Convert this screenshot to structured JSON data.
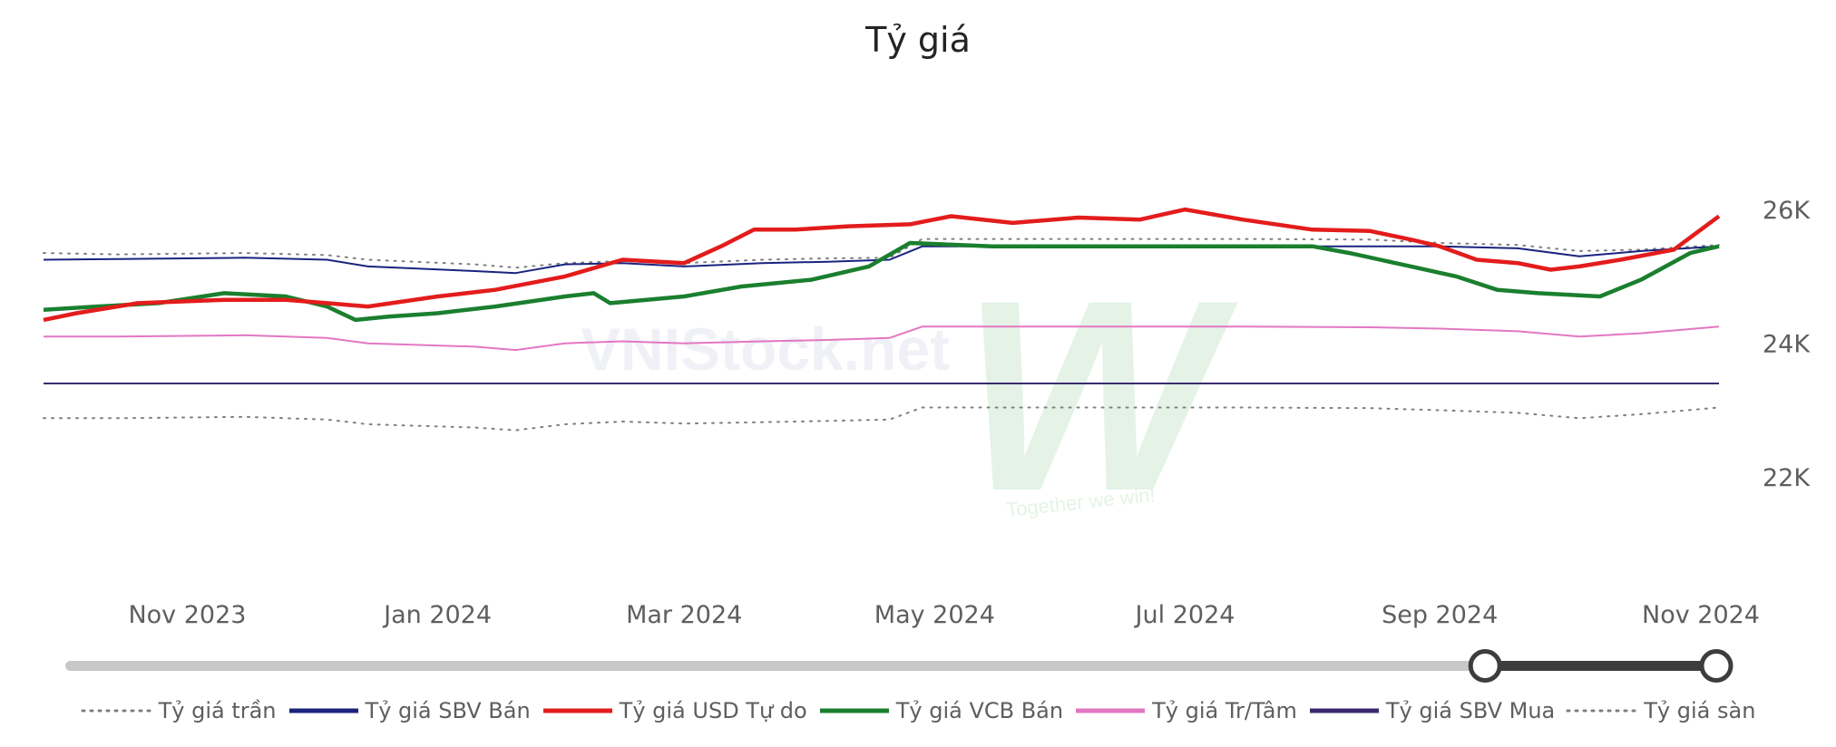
{
  "title": "Tỷ giá",
  "watermark": {
    "text": "VNIStock.net",
    "slogan": "Together we win!",
    "logo_letter": "W"
  },
  "legend": [
    {
      "name": "Tỷ giá trần",
      "color": "#7f7f7f",
      "style": "dotted"
    },
    {
      "name": "Tỷ giá SBV Bán",
      "color": "#1a237e",
      "style": "solid"
    },
    {
      "name": "Tỷ giá USD Tự do",
      "color": "#e31c1c",
      "style": "solid"
    },
    {
      "name": "Tỷ giá VCB Bán",
      "color": "#1a7f2e",
      "style": "solid"
    },
    {
      "name": "Tỷ giá Tr/Tâm",
      "color": "#e377c2",
      "style": "solid"
    },
    {
      "name": "Tỷ giá SBV Mua",
      "color": "#3b2a6e",
      "style": "solid"
    },
    {
      "name": "Tỷ giá sàn",
      "color": "#7f7f7f",
      "style": "dotted"
    }
  ],
  "slider": {
    "range_start": "Sep 2024",
    "range_end": "Nov 2024",
    "start_fraction": 0.86,
    "end_fraction": 1.0
  },
  "chart_data": {
    "type": "line",
    "title": "Tỷ giá",
    "x_ticks": [
      "Nov 2023",
      "Jan 2024",
      "Mar 2024",
      "May 2024",
      "Jul 2024",
      "Sep 2024",
      "Nov 2024"
    ],
    "y_ticks": [
      "22K",
      "24K",
      "26K"
    ],
    "x_range": [
      "2023-09-27",
      "2024-11-08"
    ],
    "ylim": [
      21000,
      27100
    ],
    "y_axis_position": "right",
    "grid": false,
    "legend_position": "bottom",
    "series": [
      {
        "name": "Tỷ giá trần",
        "color": "#7f7f7f",
        "dash": "dotted",
        "points": [
          [
            "2023-09-27",
            25350
          ],
          [
            "2023-10-15",
            25330
          ],
          [
            "2023-11-15",
            25350
          ],
          [
            "2023-12-05",
            25320
          ],
          [
            "2023-12-15",
            25250
          ],
          [
            "2024-01-10",
            25180
          ],
          [
            "2024-01-20",
            25130
          ],
          [
            "2024-02-01",
            25200
          ],
          [
            "2024-02-15",
            25230
          ],
          [
            "2024-03-01",
            25200
          ],
          [
            "2024-03-20",
            25250
          ],
          [
            "2024-04-05",
            25270
          ],
          [
            "2024-04-20",
            25280
          ],
          [
            "2024-04-28",
            25560
          ],
          [
            "2024-05-15",
            25560
          ],
          [
            "2024-06-15",
            25560
          ],
          [
            "2024-07-15",
            25560
          ],
          [
            "2024-08-15",
            25550
          ],
          [
            "2024-09-01",
            25500
          ],
          [
            "2024-09-20",
            25470
          ],
          [
            "2024-10-05",
            25380
          ],
          [
            "2024-10-20",
            25400
          ],
          [
            "2024-11-08",
            25470
          ]
        ]
      },
      {
        "name": "Tỷ giá SBV Bán",
        "color": "#1a237e",
        "dash": "solid",
        "points": [
          [
            "2023-09-27",
            25250
          ],
          [
            "2023-10-15",
            25260
          ],
          [
            "2023-11-15",
            25280
          ],
          [
            "2023-12-05",
            25250
          ],
          [
            "2023-12-15",
            25150
          ],
          [
            "2024-01-10",
            25080
          ],
          [
            "2024-01-20",
            25050
          ],
          [
            "2024-02-01",
            25180
          ],
          [
            "2024-02-15",
            25200
          ],
          [
            "2024-03-01",
            25150
          ],
          [
            "2024-03-20",
            25200
          ],
          [
            "2024-04-05",
            25220
          ],
          [
            "2024-04-20",
            25250
          ],
          [
            "2024-04-28",
            25450
          ],
          [
            "2024-05-15",
            25450
          ],
          [
            "2024-06-15",
            25450
          ],
          [
            "2024-07-15",
            25450
          ],
          [
            "2024-08-15",
            25450
          ],
          [
            "2024-09-01",
            25450
          ],
          [
            "2024-09-20",
            25420
          ],
          [
            "2024-10-05",
            25300
          ],
          [
            "2024-10-20",
            25380
          ],
          [
            "2024-11-08",
            25450
          ]
        ]
      },
      {
        "name": "Tỷ giá USD Tự do",
        "color": "#e31c1c",
        "dash": "solid",
        "points": [
          [
            "2023-09-27",
            24350
          ],
          [
            "2023-10-05",
            24450
          ],
          [
            "2023-10-20",
            24600
          ],
          [
            "2023-11-10",
            24650
          ],
          [
            "2023-11-25",
            24650
          ],
          [
            "2023-12-05",
            24600
          ],
          [
            "2023-12-15",
            24550
          ],
          [
            "2024-01-01",
            24700
          ],
          [
            "2024-01-15",
            24800
          ],
          [
            "2024-02-01",
            25000
          ],
          [
            "2024-02-15",
            25250
          ],
          [
            "2024-03-01",
            25200
          ],
          [
            "2024-03-10",
            25450
          ],
          [
            "2024-03-18",
            25700
          ],
          [
            "2024-03-28",
            25700
          ],
          [
            "2024-04-10",
            25750
          ],
          [
            "2024-04-25",
            25780
          ],
          [
            "2024-05-05",
            25900
          ],
          [
            "2024-05-20",
            25800
          ],
          [
            "2024-06-05",
            25880
          ],
          [
            "2024-06-20",
            25850
          ],
          [
            "2024-07-01",
            26000
          ],
          [
            "2024-07-15",
            25850
          ],
          [
            "2024-08-01",
            25700
          ],
          [
            "2024-08-15",
            25680
          ],
          [
            "2024-08-25",
            25550
          ],
          [
            "2024-09-01",
            25450
          ],
          [
            "2024-09-10",
            25250
          ],
          [
            "2024-09-20",
            25200
          ],
          [
            "2024-09-28",
            25100
          ],
          [
            "2024-10-05",
            25150
          ],
          [
            "2024-10-15",
            25250
          ],
          [
            "2024-10-28",
            25400
          ],
          [
            "2024-11-08",
            25900
          ]
        ]
      },
      {
        "name": "Tỷ giá VCB Bán",
        "color": "#1a7f2e",
        "dash": "solid",
        "points": [
          [
            "2023-09-27",
            24500
          ],
          [
            "2023-10-10",
            24550
          ],
          [
            "2023-10-25",
            24600
          ],
          [
            "2023-11-10",
            24750
          ],
          [
            "2023-11-25",
            24700
          ],
          [
            "2023-12-05",
            24550
          ],
          [
            "2023-12-12",
            24350
          ],
          [
            "2023-12-20",
            24400
          ],
          [
            "2024-01-01",
            24450
          ],
          [
            "2024-01-15",
            24550
          ],
          [
            "2024-02-01",
            24700
          ],
          [
            "2024-02-08",
            24750
          ],
          [
            "2024-02-12",
            24600
          ],
          [
            "2024-03-01",
            24700
          ],
          [
            "2024-03-15",
            24850
          ],
          [
            "2024-04-01",
            24950
          ],
          [
            "2024-04-15",
            25150
          ],
          [
            "2024-04-25",
            25500
          ],
          [
            "2024-05-15",
            25450
          ],
          [
            "2024-06-15",
            25450
          ],
          [
            "2024-07-15",
            25450
          ],
          [
            "2024-08-01",
            25450
          ],
          [
            "2024-08-10",
            25350
          ],
          [
            "2024-08-25",
            25150
          ],
          [
            "2024-09-05",
            25000
          ],
          [
            "2024-09-15",
            24800
          ],
          [
            "2024-09-25",
            24750
          ],
          [
            "2024-10-10",
            24700
          ],
          [
            "2024-10-20",
            24950
          ],
          [
            "2024-11-01",
            25350
          ],
          [
            "2024-11-08",
            25450
          ]
        ]
      },
      {
        "name": "Tỷ giá Tr/Tâm",
        "color": "#e377c2",
        "dash": "solid",
        "points": [
          [
            "2023-09-27",
            24100
          ],
          [
            "2023-10-15",
            24100
          ],
          [
            "2023-11-15",
            24120
          ],
          [
            "2023-12-05",
            24080
          ],
          [
            "2023-12-15",
            24000
          ],
          [
            "2024-01-10",
            23950
          ],
          [
            "2024-01-20",
            23900
          ],
          [
            "2024-02-01",
            24000
          ],
          [
            "2024-02-15",
            24030
          ],
          [
            "2024-03-01",
            24000
          ],
          [
            "2024-03-20",
            24030
          ],
          [
            "2024-04-05",
            24050
          ],
          [
            "2024-04-20",
            24080
          ],
          [
            "2024-04-28",
            24250
          ],
          [
            "2024-05-15",
            24250
          ],
          [
            "2024-06-15",
            24250
          ],
          [
            "2024-07-15",
            24250
          ],
          [
            "2024-08-15",
            24240
          ],
          [
            "2024-09-01",
            24220
          ],
          [
            "2024-09-20",
            24180
          ],
          [
            "2024-10-05",
            24100
          ],
          [
            "2024-10-20",
            24150
          ],
          [
            "2024-11-08",
            24250
          ]
        ]
      },
      {
        "name": "Tỷ giá SBV Mua",
        "color": "#3b2a6e",
        "dash": "solid",
        "points": [
          [
            "2023-09-27",
            23400
          ],
          [
            "2024-11-08",
            23400
          ]
        ]
      },
      {
        "name": "Tỷ giá sàn",
        "color": "#7f7f7f",
        "dash": "dotted",
        "points": [
          [
            "2023-09-27",
            22880
          ],
          [
            "2023-10-15",
            22880
          ],
          [
            "2023-11-15",
            22900
          ],
          [
            "2023-12-05",
            22860
          ],
          [
            "2023-12-15",
            22790
          ],
          [
            "2024-01-10",
            22740
          ],
          [
            "2024-01-20",
            22700
          ],
          [
            "2024-02-01",
            22790
          ],
          [
            "2024-02-15",
            22830
          ],
          [
            "2024-03-01",
            22800
          ],
          [
            "2024-03-20",
            22820
          ],
          [
            "2024-04-05",
            22840
          ],
          [
            "2024-04-20",
            22860
          ],
          [
            "2024-04-28",
            23040
          ],
          [
            "2024-05-15",
            23040
          ],
          [
            "2024-06-15",
            23040
          ],
          [
            "2024-07-15",
            23040
          ],
          [
            "2024-08-15",
            23030
          ],
          [
            "2024-09-01",
            23000
          ],
          [
            "2024-09-20",
            22960
          ],
          [
            "2024-10-05",
            22880
          ],
          [
            "2024-10-20",
            22940
          ],
          [
            "2024-11-08",
            23040
          ]
        ]
      }
    ]
  }
}
